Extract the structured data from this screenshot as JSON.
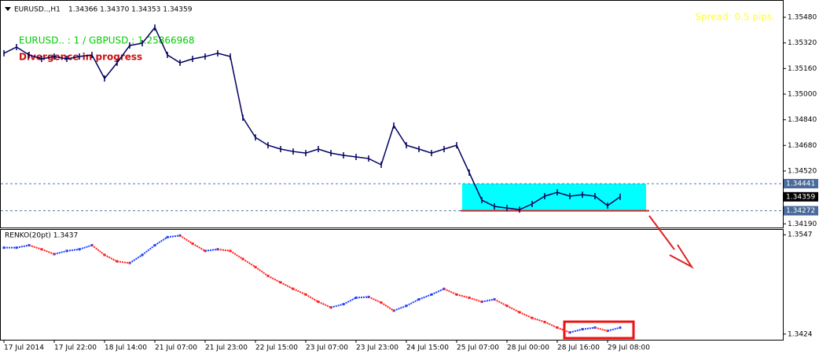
{
  "chart_data": [
    {
      "type": "line",
      "title": "EURUSD..,H1",
      "subtitle": "1.34366 1.34370 1.34353 1.34359",
      "annotations": [
        "EURUSD.. : 1 / GBPUSD : 1.25866968",
        "Divergence in progress",
        "Spread: 0.5 pips."
      ],
      "categories": [
        "17 Jul 2014",
        null,
        null,
        null,
        "17 Jul 22:00",
        null,
        null,
        null,
        "18 Jul 14:00",
        null,
        null,
        null,
        "21 Jul 07:00",
        null,
        null,
        null,
        "21 Jul 23:00",
        null,
        null,
        null,
        "22 Jul 15:00",
        null,
        null,
        null,
        "23 Jul 07:00",
        null,
        null,
        null,
        "23 Jul 23:00",
        null,
        null,
        null,
        "24 Jul 15:00",
        null,
        null,
        null,
        "25 Jul 07:00",
        null,
        null,
        null,
        "28 Jul 00:00",
        null,
        null,
        null,
        "28 Jul 16:00",
        null,
        null,
        null,
        "29 Jul 08:00",
        null
      ],
      "values": [
        1.35255,
        1.35294,
        1.35245,
        1.3522,
        1.35235,
        1.3522,
        1.35235,
        1.35245,
        1.35098,
        1.35196,
        1.35304,
        1.35318,
        1.35416,
        1.35245,
        1.35196,
        1.3522,
        1.35235,
        1.35255,
        1.35235,
        1.34853,
        1.3473,
        1.34681,
        1.34657,
        1.34642,
        1.34632,
        1.34657,
        1.34632,
        1.34618,
        1.34608,
        1.34598,
        1.34559,
        1.34804,
        1.34681,
        1.34657,
        1.34632,
        1.34657,
        1.34681,
        1.3451,
        1.34338,
        1.34299,
        1.34289,
        1.34279,
        1.34314,
        1.34363,
        1.34387,
        1.34363,
        1.34372,
        1.34363,
        1.34304,
        1.34359
      ],
      "color": "#000060",
      "ylim": [
        1.34167,
        1.35588
      ],
      "yticks": [
        {
          "value": 1.3548,
          "label": "1.35480"
        },
        {
          "value": 1.3532,
          "label": "1.35320"
        },
        {
          "value": 1.3516,
          "label": "1.35160"
        },
        {
          "value": 1.35,
          "label": "1.35000"
        },
        {
          "value": 1.3484,
          "label": "1.34840"
        },
        {
          "value": 1.3468,
          "label": "1.34680"
        },
        {
          "value": 1.3452,
          "label": "1.34520"
        },
        {
          "value": 1.3419,
          "label": "1.34190"
        }
      ],
      "levels": [
        1.34441,
        1.34359,
        1.34272
      ],
      "zone_color": "#00ffff"
    },
    {
      "type": "renko",
      "title": "RENKO(20pt) 1.3437",
      "values": [
        1.3531,
        1.3531,
        1.3534,
        1.3529,
        1.3523,
        1.3527,
        1.3529,
        1.3534,
        1.3522,
        1.3514,
        1.3512,
        1.3522,
        1.3534,
        1.3544,
        1.3546,
        1.3536,
        1.3527,
        1.3529,
        1.3527,
        1.3517,
        1.3507,
        1.3496,
        1.3488,
        1.348,
        1.3473,
        1.3464,
        1.3457,
        1.3461,
        1.3469,
        1.347,
        1.3463,
        1.3453,
        1.3459,
        1.3467,
        1.3473,
        1.348,
        1.3473,
        1.3469,
        1.3464,
        1.3467,
        1.3459,
        1.3451,
        1.3444,
        1.3439,
        1.3432,
        1.3426,
        1.343,
        1.3432,
        1.3428,
        1.3432
      ],
      "up_color": "#2040ff",
      "down_color": "#ff2020",
      "ylim": [
        1.3417,
        1.3554
      ],
      "yticks": [
        1.3547,
        1.3424
      ]
    }
  ]
}
